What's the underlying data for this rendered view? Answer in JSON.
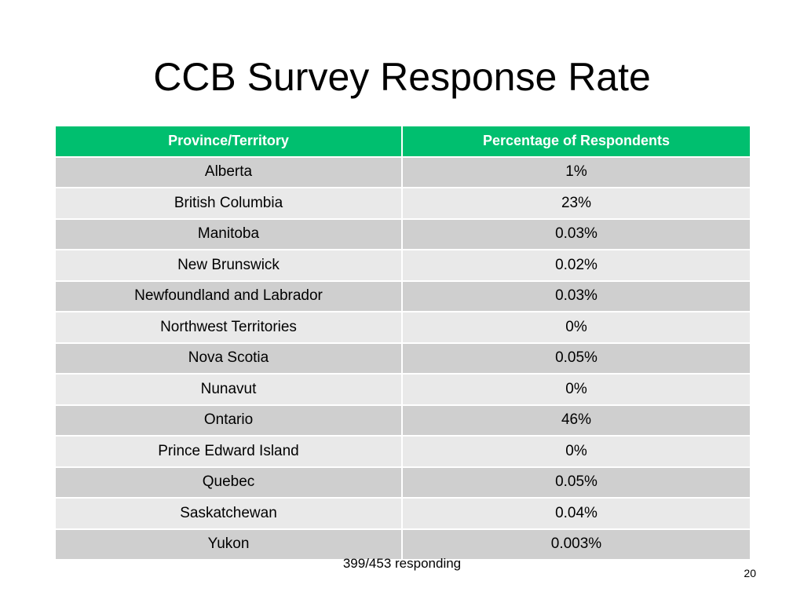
{
  "slide": {
    "title": "CCB Survey Response Rate",
    "footnote": "399/453 responding",
    "page_number": "20"
  },
  "table": {
    "headers": [
      "Province/Territory",
      "Percentage of Respondents"
    ],
    "rows": [
      {
        "province": "Alberta",
        "percentage": "1%"
      },
      {
        "province": "British Columbia",
        "percentage": "23%"
      },
      {
        "province": "Manitoba",
        "percentage": "0.03%"
      },
      {
        "province": "New Brunswick",
        "percentage": "0.02%"
      },
      {
        "province": "Newfoundland and Labrador",
        "percentage": "0.03%"
      },
      {
        "province": "Northwest Territories",
        "percentage": "0%"
      },
      {
        "province": "Nova Scotia",
        "percentage": "0.05%"
      },
      {
        "province": "Nunavut",
        "percentage": "0%"
      },
      {
        "province": "Ontario",
        "percentage": "46%"
      },
      {
        "province": "Prince Edward Island",
        "percentage": "0%"
      },
      {
        "province": "Quebec",
        "percentage": "0.05%"
      },
      {
        "province": "Saskatchewan",
        "percentage": "0.04%"
      },
      {
        "province": "Yukon",
        "percentage": "0.003%"
      }
    ]
  },
  "colors": {
    "header_bg": "#00bf6f",
    "header_text": "#ffffff",
    "row_dark": "#cfcfcf",
    "row_light": "#e9e9e9"
  }
}
